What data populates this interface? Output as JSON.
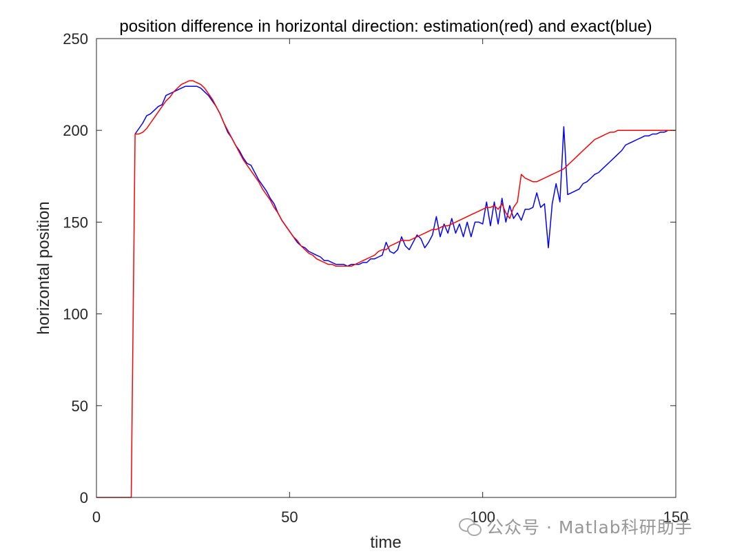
{
  "chart_data": {
    "type": "line",
    "title": "position difference in horizontal direction: estimation(red) and exact(blue)",
    "xlabel": "time",
    "ylabel": "horizontal position",
    "xlim": [
      0,
      150
    ],
    "ylim": [
      0,
      250
    ],
    "xticks": [
      "0",
      "50",
      "100",
      "150"
    ],
    "yticks": [
      "0",
      "50",
      "100",
      "150",
      "200",
      "250"
    ],
    "grid": false,
    "series": [
      {
        "color": "#0000ff",
        "x": [
          10,
          11,
          12,
          13,
          14,
          15,
          16,
          17,
          18,
          19,
          20,
          21,
          22,
          23,
          24,
          25,
          26,
          27,
          28,
          29,
          30,
          31,
          32,
          33,
          34,
          35,
          36,
          37,
          38,
          39,
          40,
          41,
          42,
          43,
          44,
          45,
          46,
          47,
          48,
          49,
          50,
          51,
          52,
          53,
          54,
          55,
          56,
          57,
          58,
          59,
          60,
          61,
          62,
          63,
          64,
          65,
          66,
          67,
          68,
          69,
          70,
          71,
          72,
          73,
          74,
          75,
          76,
          77,
          78,
          79,
          80,
          81,
          82,
          83,
          84,
          85,
          86,
          87,
          88,
          89,
          90,
          91,
          92,
          93,
          94,
          95,
          96,
          97,
          98,
          99,
          100,
          101,
          102,
          103,
          104,
          105,
          106,
          107,
          108,
          109,
          110,
          111,
          112,
          113,
          114,
          115,
          116,
          117,
          118,
          119,
          120,
          121,
          122,
          123,
          124,
          125,
          126,
          127,
          128,
          129,
          130,
          131,
          132,
          133,
          134,
          135,
          136,
          137,
          138,
          139,
          140,
          141,
          142,
          143,
          144,
          145,
          146,
          147,
          148,
          149,
          150
        ],
        "y": [
          198,
          201,
          204,
          208,
          209,
          211,
          213,
          214,
          219,
          220,
          221,
          222,
          223,
          224,
          224,
          224,
          224,
          223,
          221,
          219,
          216,
          213,
          209,
          204,
          199,
          196,
          192,
          189,
          185,
          182,
          181,
          177,
          173,
          170,
          167,
          163,
          160,
          155,
          151,
          148,
          145,
          142,
          139,
          137,
          136,
          134,
          133,
          132,
          131,
          129,
          129,
          128,
          127,
          127,
          127,
          126,
          127,
          127,
          127,
          128,
          128,
          130,
          130,
          131,
          132,
          139,
          134,
          133,
          135,
          142,
          137,
          135,
          139,
          143,
          141,
          136,
          139,
          143,
          153,
          142,
          149,
          144,
          152,
          144,
          149,
          142,
          150,
          142,
          150,
          150,
          149,
          161,
          148,
          161,
          149,
          163,
          150,
          159,
          152,
          155,
          151,
          157,
          157,
          158,
          166,
          158,
          160,
          136,
          160,
          171,
          161,
          202,
          165,
          166,
          167,
          168,
          171,
          172,
          174,
          176,
          177,
          179,
          181,
          183,
          185,
          187,
          189,
          192,
          193,
          194,
          195,
          196,
          197,
          197,
          198,
          198,
          199,
          199,
          200,
          200,
          200
        ]
      },
      {
        "color": "#ff0000",
        "x": [
          0,
          1,
          2,
          3,
          4,
          5,
          6,
          7,
          8,
          9,
          10,
          11,
          12,
          13,
          14,
          15,
          16,
          17,
          18,
          19,
          20,
          21,
          22,
          23,
          24,
          25,
          26,
          27,
          28,
          29,
          30,
          31,
          32,
          33,
          34,
          35,
          36,
          37,
          38,
          39,
          40,
          41,
          42,
          43,
          44,
          45,
          46,
          47,
          48,
          49,
          50,
          51,
          52,
          53,
          54,
          55,
          56,
          57,
          58,
          59,
          60,
          61,
          62,
          63,
          64,
          65,
          66,
          67,
          68,
          69,
          70,
          71,
          72,
          73,
          74,
          75,
          76,
          77,
          78,
          79,
          80,
          81,
          82,
          83,
          84,
          85,
          86,
          87,
          88,
          89,
          90,
          91,
          92,
          93,
          94,
          95,
          96,
          97,
          98,
          99,
          100,
          101,
          102,
          103,
          104,
          105,
          106,
          107,
          108,
          109,
          110,
          111,
          112,
          113,
          114,
          115,
          116,
          117,
          118,
          119,
          120,
          121,
          122,
          123,
          124,
          125,
          126,
          127,
          128,
          129,
          130,
          131,
          132,
          133,
          134,
          135,
          136,
          137,
          138,
          139,
          140,
          141,
          142,
          143,
          144,
          145,
          146,
          147,
          148,
          149,
          150
        ],
        "y": [
          0,
          0,
          0,
          0,
          0,
          0,
          0,
          0,
          0,
          0,
          198,
          198,
          199,
          201,
          204,
          207,
          210,
          213,
          216,
          218,
          221,
          223,
          225,
          226,
          227,
          227,
          226,
          225,
          223,
          220,
          217,
          213,
          209,
          204,
          200,
          196,
          192,
          188,
          184,
          181,
          178,
          175,
          172,
          168,
          165,
          162,
          158,
          155,
          151,
          148,
          145,
          142,
          140,
          137,
          135,
          133,
          132,
          130,
          129,
          128,
          127,
          127,
          126,
          126,
          126,
          126,
          126,
          127,
          128,
          129,
          130,
          131,
          132,
          134,
          135,
          135,
          137,
          138,
          139,
          140,
          140,
          140,
          141,
          142,
          143,
          144,
          145,
          146,
          146,
          147,
          148,
          148,
          149,
          150,
          151,
          152,
          153,
          154,
          155,
          156,
          157,
          158,
          158,
          159,
          157,
          160,
          155,
          152,
          158,
          161,
          176,
          174,
          173,
          172,
          172,
          173,
          174,
          175,
          176,
          177,
          178,
          179,
          181,
          183,
          185,
          187,
          189,
          191,
          193,
          195,
          196,
          197,
          198,
          199,
          199,
          200,
          200,
          200,
          200,
          200,
          200,
          200,
          200,
          200,
          200,
          200,
          200,
          200,
          200,
          200,
          200
        ]
      }
    ]
  },
  "watermark": {
    "text": "公众号 · Matlab科研助手",
    "icon": "wechat-icon"
  }
}
